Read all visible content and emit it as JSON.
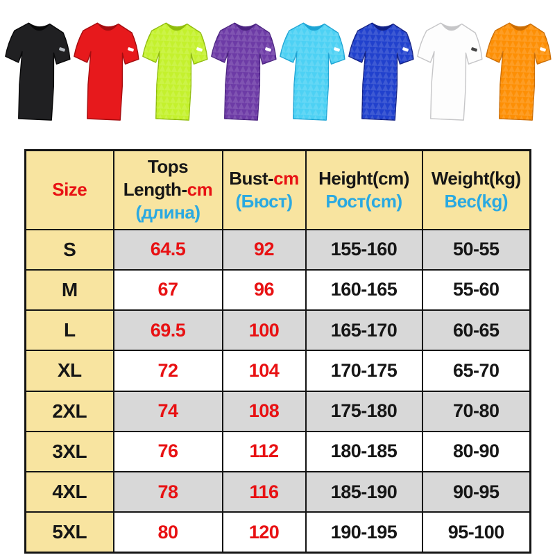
{
  "page": {
    "background": "#ffffff"
  },
  "gallery": {
    "description": "eight short-sleeve crew-neck sport t-shirts in different colors",
    "shirts": [
      {
        "label": "black",
        "fill": "#202022",
        "shade": "#080809",
        "logo_color": "#b9bec4",
        "patterned": false
      },
      {
        "label": "red",
        "fill": "#e7191c",
        "shade": "#a50d10",
        "logo_color": "#ffffff",
        "patterned": false
      },
      {
        "label": "neon-green",
        "fill": "#c4f12d",
        "shade": "#8fbc0a",
        "logo_color": "#ffffff",
        "patterned": true
      },
      {
        "label": "purple",
        "fill": "#6d3ba6",
        "shade": "#4a2180",
        "logo_color": "#ffffff",
        "patterned": true
      },
      {
        "label": "sky-blue",
        "fill": "#4dd1f4",
        "shade": "#1ba4d4",
        "logo_color": "#ffffff",
        "patterned": true
      },
      {
        "label": "royal-blue",
        "fill": "#2141cd",
        "shade": "#101f85",
        "logo_color": "#ffffff",
        "patterned": true
      },
      {
        "label": "white",
        "fill": "#fdfdfd",
        "shade": "#c6c6c8",
        "logo_color": "#444444",
        "patterned": false
      },
      {
        "label": "orange",
        "fill": "#fd8f05",
        "shade": "#cc6c00",
        "logo_color": "#ffffff",
        "patterned": true
      }
    ]
  },
  "size_chart": {
    "colors": {
      "red": "#e81113",
      "blue": "#2aa9e1",
      "black": "#161616",
      "header_bg": "#f8e4a0",
      "shaded_bg": "#d8d8d8",
      "row_bg": "#ffffff",
      "border": "#141414"
    },
    "header": [
      {
        "name": "size",
        "lines": [
          [
            {
              "t": "Size",
              "c": "red"
            }
          ]
        ]
      },
      {
        "name": "tops-length",
        "lines": [
          [
            {
              "t": "Tops",
              "c": "black"
            }
          ],
          [
            {
              "t": "Length-",
              "c": "black"
            },
            {
              "t": "cm",
              "c": "red"
            }
          ],
          [
            {
              "t": "(длина)",
              "c": "blue"
            }
          ]
        ]
      },
      {
        "name": "bust",
        "lines": [
          [
            {
              "t": "Bust-",
              "c": "black"
            },
            {
              "t": "cm",
              "c": "red"
            }
          ],
          [
            {
              "t": "(Бюст)",
              "c": "blue"
            }
          ]
        ]
      },
      {
        "name": "height",
        "lines": [
          [
            {
              "t": "Height(cm)",
              "c": "black"
            }
          ],
          [
            {
              "t": "Рост(cm)",
              "c": "blue"
            }
          ]
        ]
      },
      {
        "name": "weight",
        "lines": [
          [
            {
              "t": "Weight(kg)",
              "c": "black"
            }
          ],
          [
            {
              "t": "Вес(kg)",
              "c": "blue"
            }
          ]
        ]
      }
    ],
    "value_colors": [
      "red",
      "red",
      "black",
      "black"
    ],
    "rows": [
      {
        "size": "S",
        "values": [
          "64.5",
          "92",
          "155-160",
          "50-55"
        ],
        "shaded": true
      },
      {
        "size": "M",
        "values": [
          "67",
          "96",
          "160-165",
          "55-60"
        ],
        "shaded": false
      },
      {
        "size": "L",
        "values": [
          "69.5",
          "100",
          "165-170",
          "60-65"
        ],
        "shaded": true
      },
      {
        "size": "XL",
        "values": [
          "72",
          "104",
          "170-175",
          "65-70"
        ],
        "shaded": false
      },
      {
        "size": "2XL",
        "values": [
          "74",
          "108",
          "175-180",
          "70-80"
        ],
        "shaded": true
      },
      {
        "size": "3XL",
        "values": [
          "76",
          "112",
          "180-185",
          "80-90"
        ],
        "shaded": false
      },
      {
        "size": "4XL",
        "values": [
          "78",
          "116",
          "185-190",
          "90-95"
        ],
        "shaded": true
      },
      {
        "size": "5XL",
        "values": [
          "80",
          "120",
          "190-195",
          "95-100"
        ],
        "shaded": false
      }
    ]
  },
  "chart_data": {
    "type": "table",
    "title": "T-shirt size chart",
    "columns": [
      "Size",
      "Tops Length-cm (длина)",
      "Bust-cm (Бюст)",
      "Height(cm) Рост(cm)",
      "Weight(kg) Вес(kg)"
    ],
    "rows": [
      [
        "S",
        64.5,
        92,
        "155-160",
        "50-55"
      ],
      [
        "M",
        67,
        96,
        "160-165",
        "55-60"
      ],
      [
        "L",
        69.5,
        100,
        "165-170",
        "60-65"
      ],
      [
        "XL",
        72,
        104,
        "170-175",
        "65-70"
      ],
      [
        "2XL",
        74,
        108,
        "175-180",
        "70-80"
      ],
      [
        "3XL",
        76,
        112,
        "180-185",
        "80-90"
      ],
      [
        "4XL",
        78,
        116,
        "185-190",
        "90-95"
      ],
      [
        "5XL",
        80,
        120,
        "190-195",
        "95-100"
      ]
    ],
    "shirt_colors": [
      "black",
      "red",
      "neon-green",
      "purple",
      "sky-blue",
      "royal-blue",
      "white",
      "orange"
    ]
  }
}
